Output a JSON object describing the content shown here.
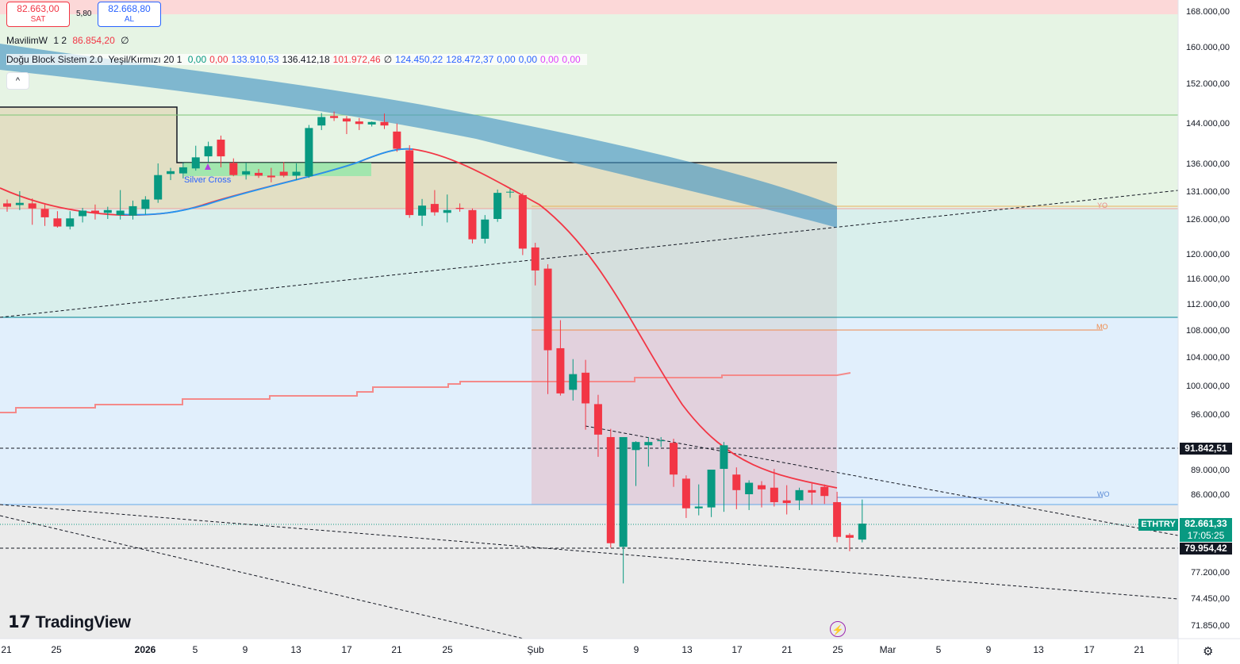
{
  "chart_data": {
    "type": "candlestick",
    "symbol": "ETHTRY",
    "y_axis_ticks": [
      "168.000,00",
      "160.000,00",
      "152.000,00",
      "144.000,00",
      "136.000,00",
      "131.000,00",
      "126.000,00",
      "120.000,00",
      "116.000,00",
      "112.000,00",
      "108.000,00",
      "104.000,00",
      "100.000,00",
      "96.000,00",
      "91.842,51",
      "89.000,00",
      "86.000,00",
      "82.661,33",
      "79.954,42",
      "77.200,00",
      "74.450,00",
      "71.850,00"
    ],
    "x_axis_ticks": [
      "21",
      "25",
      "2026",
      "5",
      "9",
      "13",
      "17",
      "21",
      "25",
      "Şub",
      "5",
      "9",
      "13",
      "17",
      "21",
      "25",
      "Mar",
      "5",
      "9",
      "13",
      "17",
      "21"
    ],
    "ylim": [
      71000,
      169500
    ],
    "candles": [
      {
        "o": 128800,
        "h": 129500,
        "l": 127300,
        "c": 128200
      },
      {
        "o": 128500,
        "h": 131000,
        "l": 127600,
        "c": 128900
      },
      {
        "o": 128800,
        "h": 129700,
        "l": 125000,
        "c": 127900
      },
      {
        "o": 127800,
        "h": 128600,
        "l": 124800,
        "c": 126300
      },
      {
        "o": 126100,
        "h": 127400,
        "l": 124500,
        "c": 124700
      },
      {
        "o": 124700,
        "h": 127400,
        "l": 124200,
        "c": 126100
      },
      {
        "o": 126500,
        "h": 128000,
        "l": 125400,
        "c": 127500
      },
      {
        "o": 127500,
        "h": 128600,
        "l": 125900,
        "c": 127100
      },
      {
        "o": 127100,
        "h": 128200,
        "l": 126000,
        "c": 127600
      },
      {
        "o": 126700,
        "h": 131200,
        "l": 125900,
        "c": 127500
      },
      {
        "o": 126600,
        "h": 129300,
        "l": 125900,
        "c": 128300
      },
      {
        "o": 127800,
        "h": 130100,
        "l": 126800,
        "c": 129500
      },
      {
        "o": 129500,
        "h": 136000,
        "l": 128900,
        "c": 133900
      },
      {
        "o": 134100,
        "h": 135200,
        "l": 133000,
        "c": 134600
      },
      {
        "o": 134200,
        "h": 136200,
        "l": 133300,
        "c": 135300
      },
      {
        "o": 135100,
        "h": 139500,
        "l": 134700,
        "c": 137200
      },
      {
        "o": 137400,
        "h": 140300,
        "l": 136300,
        "c": 139400
      },
      {
        "o": 140700,
        "h": 141500,
        "l": 135300,
        "c": 137400
      },
      {
        "o": 136100,
        "h": 137000,
        "l": 133700,
        "c": 133900
      },
      {
        "o": 134000,
        "h": 136100,
        "l": 133100,
        "c": 134600
      },
      {
        "o": 134300,
        "h": 135000,
        "l": 133400,
        "c": 133800
      },
      {
        "o": 133800,
        "h": 135200,
        "l": 132600,
        "c": 133500
      },
      {
        "o": 134500,
        "h": 136300,
        "l": 133500,
        "c": 133800
      },
      {
        "o": 133800,
        "h": 136000,
        "l": 133000,
        "c": 134500
      },
      {
        "o": 133700,
        "h": 143600,
        "l": 133400,
        "c": 143000
      },
      {
        "o": 143500,
        "h": 146000,
        "l": 142600,
        "c": 145200
      },
      {
        "o": 145400,
        "h": 146300,
        "l": 144400,
        "c": 145000
      },
      {
        "o": 144900,
        "h": 145400,
        "l": 141800,
        "c": 144300
      },
      {
        "o": 144300,
        "h": 145000,
        "l": 142600,
        "c": 143800
      },
      {
        "o": 143700,
        "h": 144300,
        "l": 143300,
        "c": 144200
      },
      {
        "o": 144200,
        "h": 145900,
        "l": 142800,
        "c": 143500
      },
      {
        "o": 142300,
        "h": 143900,
        "l": 138300,
        "c": 138900
      },
      {
        "o": 138600,
        "h": 139600,
        "l": 126200,
        "c": 126700
      },
      {
        "o": 126600,
        "h": 129600,
        "l": 124800,
        "c": 128400
      },
      {
        "o": 128700,
        "h": 131200,
        "l": 126600,
        "c": 127200
      },
      {
        "o": 127100,
        "h": 130400,
        "l": 125400,
        "c": 127600
      },
      {
        "o": 128000,
        "h": 128800,
        "l": 127300,
        "c": 127800
      },
      {
        "o": 127600,
        "h": 127900,
        "l": 121800,
        "c": 122500
      },
      {
        "o": 122600,
        "h": 126700,
        "l": 121800,
        "c": 125900
      },
      {
        "o": 126000,
        "h": 131300,
        "l": 125500,
        "c": 130700
      },
      {
        "o": 130800,
        "h": 131400,
        "l": 129800,
        "c": 130900
      },
      {
        "o": 130300,
        "h": 130700,
        "l": 119800,
        "c": 120900
      },
      {
        "o": 121100,
        "h": 121900,
        "l": 114900,
        "c": 117300
      },
      {
        "o": 117600,
        "h": 118300,
        "l": 98800,
        "c": 105000
      },
      {
        "o": 105300,
        "h": 109500,
        "l": 98600,
        "c": 98900
      },
      {
        "o": 99400,
        "h": 103700,
        "l": 97900,
        "c": 101600
      },
      {
        "o": 101800,
        "h": 103600,
        "l": 94100,
        "c": 97500
      },
      {
        "o": 97400,
        "h": 98700,
        "l": 90700,
        "c": 93500
      },
      {
        "o": 93200,
        "h": 94200,
        "l": 80000,
        "c": 80500
      },
      {
        "o": 80100,
        "h": 93000,
        "l": 76000,
        "c": 93200
      },
      {
        "o": 91600,
        "h": 92700,
        "l": 87000,
        "c": 92600
      },
      {
        "o": 92200,
        "h": 93200,
        "l": 89400,
        "c": 92600
      },
      {
        "o": 92700,
        "h": 93200,
        "l": 92000,
        "c": 92800
      },
      {
        "o": 92500,
        "h": 93000,
        "l": 86900,
        "c": 88400
      },
      {
        "o": 87900,
        "h": 88300,
        "l": 83300,
        "c": 84400
      },
      {
        "o": 84400,
        "h": 87200,
        "l": 83600,
        "c": 84600
      },
      {
        "o": 84500,
        "h": 89000,
        "l": 83400,
        "c": 89000
      },
      {
        "o": 89100,
        "h": 92600,
        "l": 84000,
        "c": 92200
      },
      {
        "o": 88400,
        "h": 89300,
        "l": 84300,
        "c": 86500
      },
      {
        "o": 86000,
        "h": 87700,
        "l": 84200,
        "c": 87400
      },
      {
        "o": 87100,
        "h": 87600,
        "l": 84500,
        "c": 86600
      },
      {
        "o": 86800,
        "h": 89100,
        "l": 84600,
        "c": 85100
      },
      {
        "o": 85300,
        "h": 87100,
        "l": 83700,
        "c": 85000
      },
      {
        "o": 85300,
        "h": 86800,
        "l": 84200,
        "c": 86500
      },
      {
        "o": 86500,
        "h": 87300,
        "l": 84800,
        "c": 86200
      },
      {
        "o": 86900,
        "h": 87200,
        "l": 84900,
        "c": 85800
      },
      {
        "o": 85100,
        "h": 86300,
        "l": 80600,
        "c": 81200
      },
      {
        "o": 81400,
        "h": 81600,
        "l": 79600,
        "c": 81100
      },
      {
        "o": 80900,
        "h": 85400,
        "l": 80600,
        "c": 82661
      }
    ],
    "annotations": [
      "Silver Cross",
      "YO",
      "MO",
      "WO"
    ]
  },
  "header": {
    "sell_price": "82.663,00",
    "sell_label": "SAT",
    "spread": "5,80",
    "buy_price": "82.668,80",
    "buy_label": "AL"
  },
  "legend1": {
    "name": "MavilimW",
    "params": "1 2",
    "value": "86.854,20",
    "extra": "∅"
  },
  "legend2": {
    "name": "Doğu Block Sistem 2.0",
    "params": "Yeşil/Kırmızı 20 1",
    "values": [
      "0,00",
      "0,00",
      "133.910,53",
      "136.412,18",
      "101.972,46",
      "∅",
      "124.450,22",
      "128.472,37",
      "0,00",
      "0,00",
      "0,00",
      "0,00"
    ],
    "colors": [
      "#089981",
      "#f23645",
      "#2962ff",
      "#131722",
      "#f23645",
      "#131722",
      "#2962ff",
      "#2962ff",
      "#2962ff",
      "#2962ff",
      "#e040fb",
      "#e040fb"
    ]
  },
  "last_price_tag": {
    "symbol": "ETHTRY",
    "price": "82.661,33",
    "countdown": "17:05:25"
  },
  "level_tags": {
    "upper": "91.842,51",
    "lower": "79.954,42"
  },
  "branding": {
    "logo_text": "TradingView"
  },
  "colors": {
    "up": "#089981",
    "down": "#f23645",
    "cloud": "#5ba4c8",
    "ma_red": "#f23645",
    "ma_blue": "#2196f3"
  }
}
